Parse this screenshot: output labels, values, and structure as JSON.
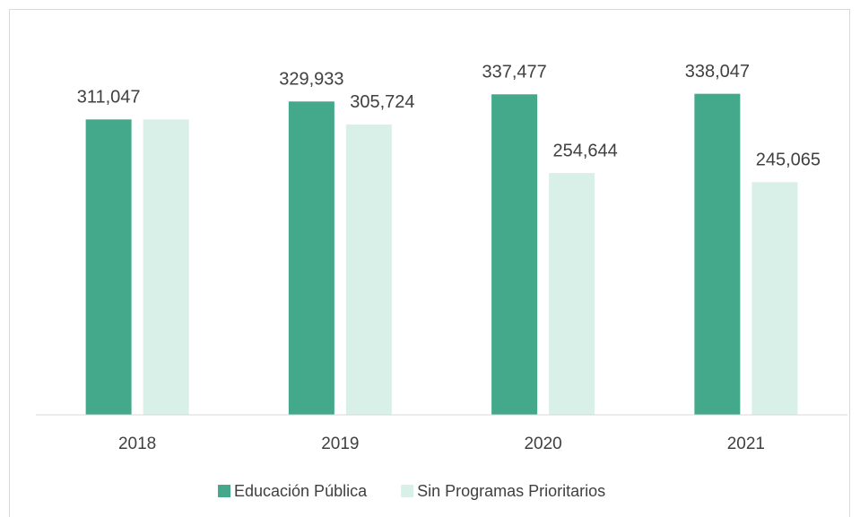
{
  "chart_data": {
    "type": "bar",
    "categories": [
      "2018",
      "2019",
      "2020",
      "2021"
    ],
    "series": [
      {
        "name": "Educación Pública",
        "color": "#43a98a",
        "values": [
          311047,
          329933,
          337477,
          338047
        ],
        "value_labels": [
          "311,047",
          "329,933",
          "337,477",
          "338,047"
        ]
      },
      {
        "name": "Sin Programas Prioritarios",
        "color": "#d9f0e8",
        "values": [
          311047,
          305724,
          254644,
          245065
        ],
        "value_labels": [
          null,
          "305,724",
          "254,644",
          "245,065"
        ]
      }
    ],
    "ylim": [
      0,
      400000
    ],
    "legend": "bottom"
  }
}
